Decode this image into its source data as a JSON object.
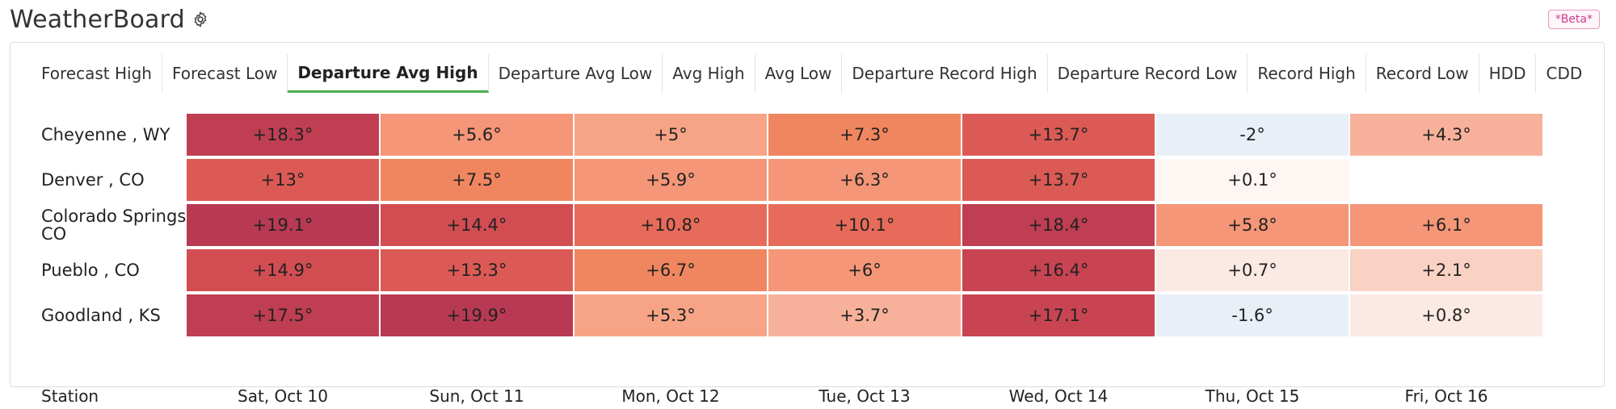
{
  "app": {
    "title": "WeatherBoard",
    "beta": "*Beta*"
  },
  "tabs": [
    "Forecast High",
    "Forecast Low",
    "Departure Avg High",
    "Departure Avg Low",
    "Avg High",
    "Avg Low",
    "Departure Record High",
    "Departure Record Low",
    "Record High",
    "Record Low",
    "HDD",
    "CDD"
  ],
  "active_tab": "Departure Avg High",
  "table": {
    "station_header": "Station",
    "days": [
      "Sat, Oct 10",
      "Sun, Oct 11",
      "Mon, Oct 12",
      "Tue, Oct 13",
      "Wed, Oct 14",
      "Thu, Oct 15",
      "Fri, Oct 16"
    ],
    "rows": [
      {
        "station": "Cheyenne , WY",
        "values": [
          18.3,
          5.6,
          5,
          7.3,
          13.7,
          -2,
          4.3
        ],
        "labels": [
          "+18.3°",
          "+5.6°",
          "+5°",
          "+7.3°",
          "+13.7°",
          "-2°",
          "+4.3°"
        ]
      },
      {
        "station": "Denver , CO",
        "values": [
          13,
          7.5,
          5.9,
          6.3,
          13.7,
          0.1,
          null
        ],
        "labels": [
          "+13°",
          "+7.5°",
          "+5.9°",
          "+6.3°",
          "+13.7°",
          "+0.1°",
          ""
        ]
      },
      {
        "station": "Colorado Springs , CO",
        "values": [
          19.1,
          14.4,
          10.8,
          10.1,
          18.4,
          5.8,
          6.1
        ],
        "labels": [
          "+19.1°",
          "+14.4°",
          "+10.8°",
          "+10.1°",
          "+18.4°",
          "+5.8°",
          "+6.1°"
        ]
      },
      {
        "station": "Pueblo , CO",
        "values": [
          14.9,
          13.3,
          6.7,
          6,
          16.4,
          0.7,
          2.1
        ],
        "labels": [
          "+14.9°",
          "+13.3°",
          "+6.7°",
          "+6°",
          "+16.4°",
          "+0.7°",
          "+2.1°"
        ]
      },
      {
        "station": "Goodland , KS",
        "values": [
          17.5,
          19.9,
          5.3,
          3.7,
          17.1,
          -1.6,
          0.8
        ],
        "labels": [
          "+17.5°",
          "+19.9°",
          "+5.3°",
          "+3.7°",
          "+17.1°",
          "-1.6°",
          "+0.8°"
        ]
      }
    ]
  },
  "colors": {
    "active_tab_underline": "#4caf50",
    "warm_scale": [
      "#fbe9e4",
      "#f9b79d",
      "#f39a78",
      "#ef7f5e",
      "#de5b55",
      "#c43e52",
      "#b73751"
    ],
    "cool_cell": "#e8eff6"
  }
}
